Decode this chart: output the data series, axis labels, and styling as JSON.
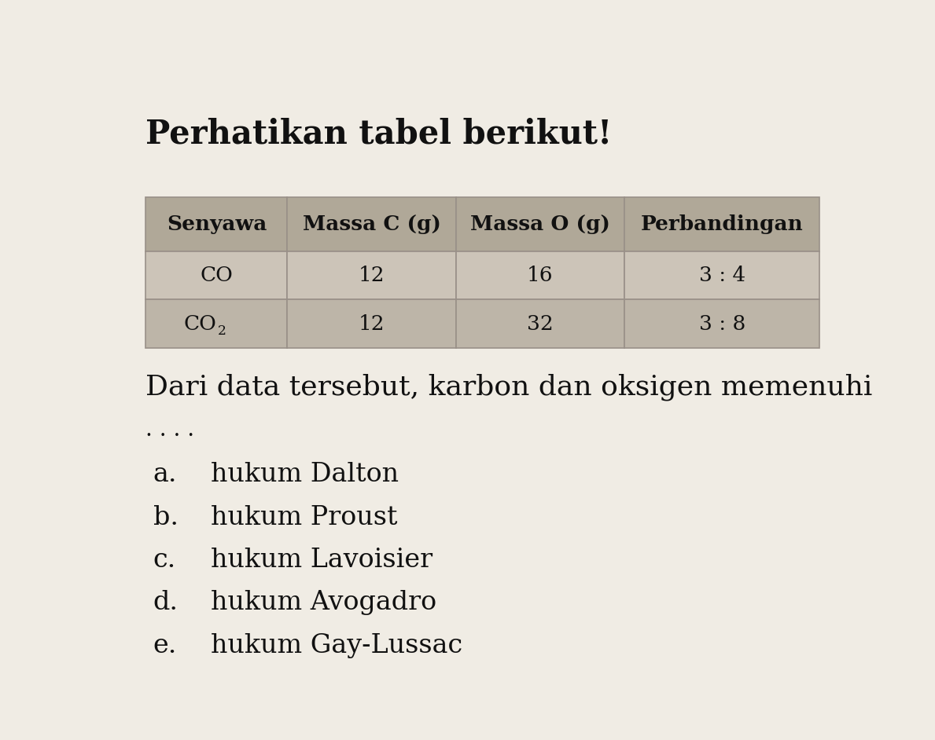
{
  "title": "Perhatikan tabel berikut!",
  "table_headers": [
    "Senyawa",
    "Massa C (g)",
    "Massa O (g)",
    "Perbandingan"
  ],
  "table_rows": [
    [
      "CO",
      "12",
      "16",
      "3 : 4"
    ],
    [
      "CO2",
      "12",
      "32",
      "3 : 8"
    ]
  ],
  "question_text": "Dari data tersebut, karbon dan oksigen memenuhi",
  "dots": ". . . .",
  "choices": [
    {
      "label": "a.",
      "text": "hukum Dalton"
    },
    {
      "label": "b.",
      "text": "hukum Proust"
    },
    {
      "label": "c.",
      "text": "hukum Lavoisier"
    },
    {
      "label": "d.",
      "text": "hukum Avogadro"
    },
    {
      "label": "e.",
      "text": "hukum Gay-Lussac"
    }
  ],
  "page_bg": "#f0ece4",
  "header_bg": "#b0a898",
  "row1_bg": "#ccc4b8",
  "row2_bg": "#bdb5a8",
  "border_color": "#999088",
  "text_color": "#111111",
  "title_fontsize": 30,
  "header_fontsize": 19,
  "cell_fontsize": 19,
  "question_fontsize": 26,
  "choice_label_fontsize": 24,
  "choice_text_fontsize": 24,
  "dots_fontsize": 20
}
